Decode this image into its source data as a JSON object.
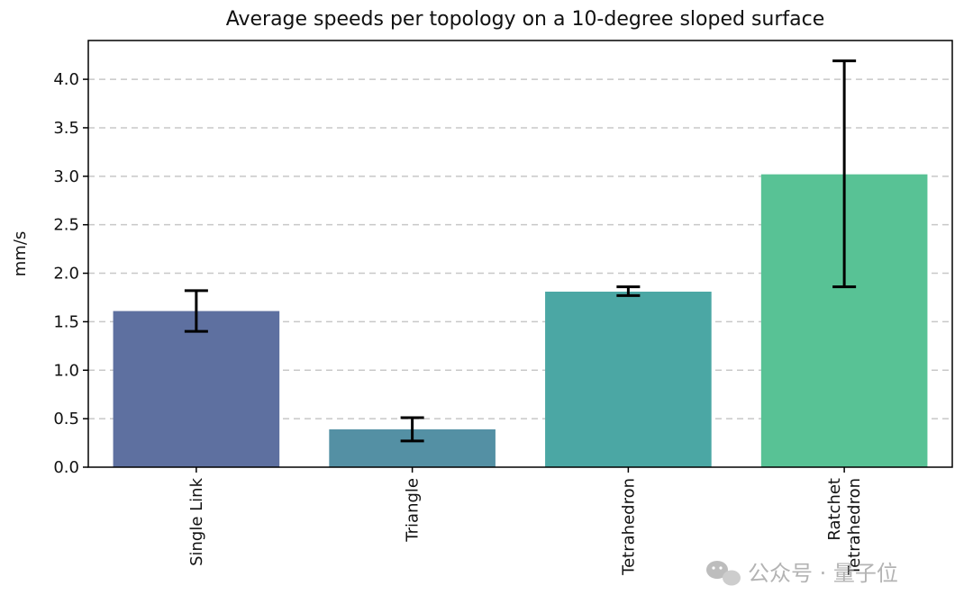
{
  "chart_data": {
    "type": "bar",
    "title": "Average speeds per topology on a 10-degree sloped surface",
    "xlabel": "",
    "ylabel": "mm/s",
    "ylim": [
      0,
      4.4
    ],
    "yticks": [
      "0.0",
      "0.5",
      "1.0",
      "1.5",
      "2.0",
      "2.5",
      "3.0",
      "3.5",
      "4.0"
    ],
    "grid": "y-dashed",
    "categories": [
      [
        "Single Link"
      ],
      [
        "Triangle"
      ],
      [
        "Tetrahedron"
      ],
      [
        "Ratchet",
        "Tetrahedron"
      ]
    ],
    "values": [
      1.61,
      0.39,
      1.81,
      3.02
    ],
    "error_low": [
      1.4,
      0.27,
      1.77,
      1.86
    ],
    "error_high": [
      1.82,
      0.51,
      1.86,
      4.19
    ],
    "colors": [
      "#5e70a0",
      "#5490a4",
      "#4ba7a4",
      "#58c295"
    ]
  },
  "watermark": {
    "text": "公众号 · 量子位",
    "icon": "wechat-icon"
  }
}
